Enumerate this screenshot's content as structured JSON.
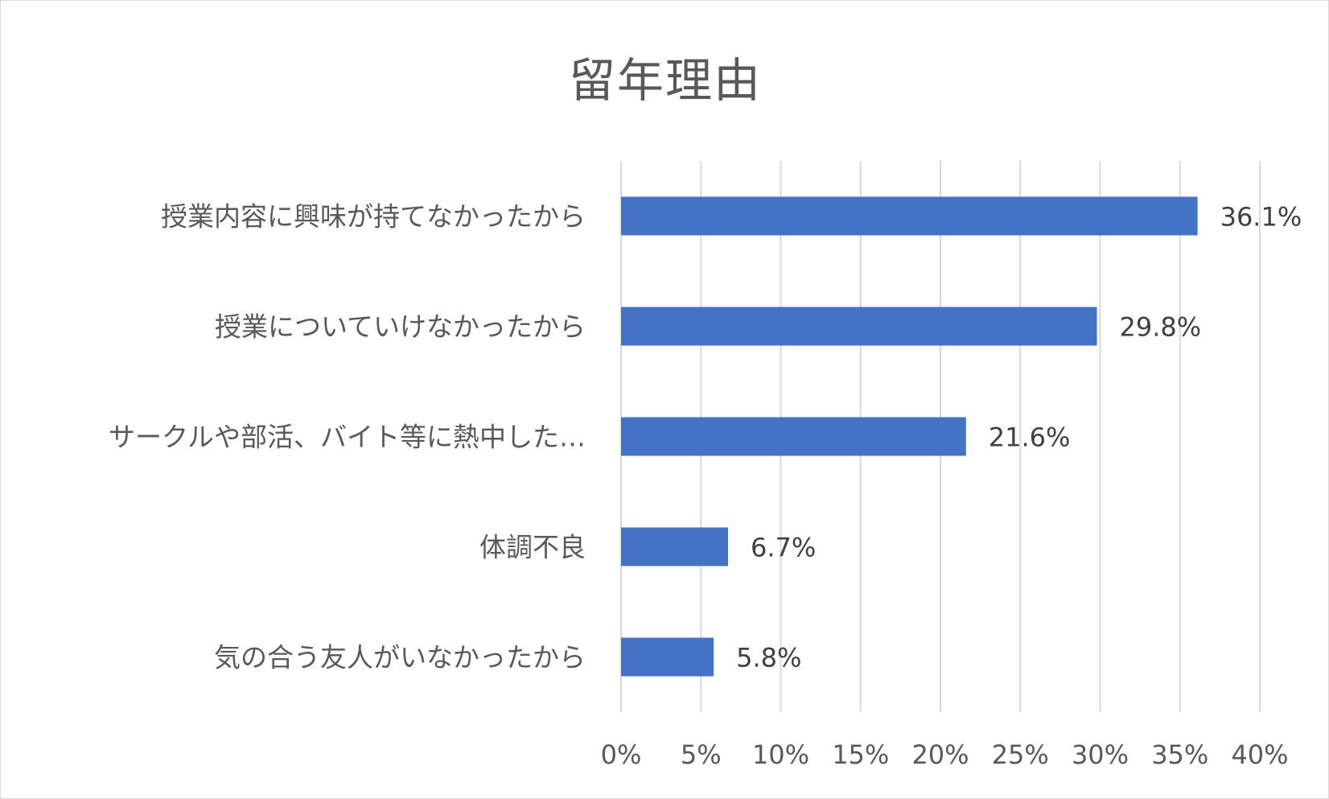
{
  "chart_data": {
    "type": "bar",
    "orientation": "horizontal",
    "title": "留年理由",
    "categories": [
      "授業内容に興味が持てなかったから",
      "授業についていけなかったから",
      "サークルや部活、バイト等に熱中した…",
      "体調不良",
      "気の合う友人がいなかったから"
    ],
    "values": [
      36.1,
      29.8,
      21.6,
      6.7,
      5.8
    ],
    "data_labels": [
      "36.1%",
      "29.8%",
      "21.6%",
      "6.7%",
      "5.8%"
    ],
    "xlim": [
      0,
      40
    ],
    "xticks": [
      0,
      5,
      10,
      15,
      20,
      25,
      30,
      35,
      40
    ],
    "xtick_labels": [
      "0%",
      "5%",
      "10%",
      "15%",
      "20%",
      "25%",
      "30%",
      "35%",
      "40%"
    ],
    "grid": "vertical",
    "legend": "none",
    "bar_color": "#4472c4"
  }
}
